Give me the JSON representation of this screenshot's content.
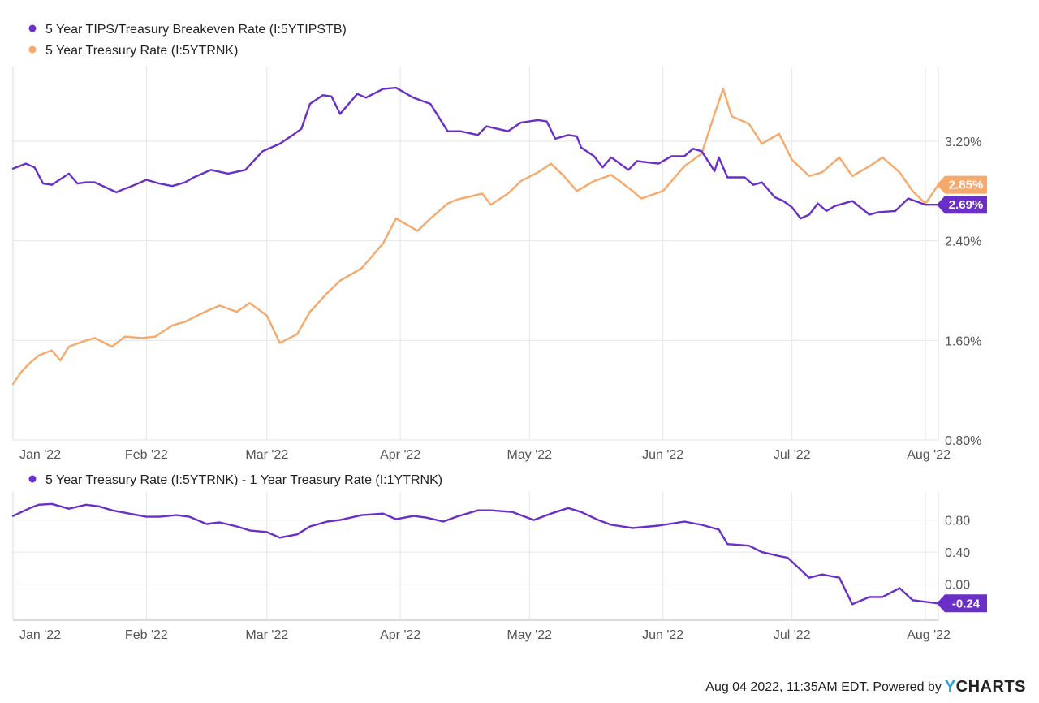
{
  "footer": {
    "text": "Aug 04 2022, 11:35AM EDT. Powered by",
    "brand": "CHARTS",
    "brand_mark": "Y"
  },
  "colors": {
    "purple": "#6a2fc7",
    "orange": "#f7a96b",
    "grid": "#e6e6e6",
    "axis": "#555555"
  },
  "chart_data": [
    {
      "type": "line",
      "x_months": [
        "Jan '22",
        "Feb '22",
        "Mar '22",
        "Apr '22",
        "May '22",
        "Jun '22",
        "Jul '22",
        "Aug '22"
      ],
      "xlim": [
        "2022-01-01",
        "2022-08-04"
      ],
      "y_ticks": [
        "3.20%",
        "2.40%",
        "1.60%",
        "0.80%"
      ],
      "ylim": [
        0.8,
        3.8
      ],
      "ylabel": "",
      "xlabel": "",
      "legend_position": "top-left",
      "series": [
        {
          "name": "5 Year TIPS/Treasury Breakeven Rate (I:5YTIPSTB)",
          "color": "#6a2fc7",
          "last_label": "2.69%",
          "x": [
            "2022-01-01",
            "2022-01-04",
            "2022-01-06",
            "2022-01-08",
            "2022-01-10",
            "2022-01-14",
            "2022-01-16",
            "2022-01-18",
            "2022-01-20",
            "2022-01-25",
            "2022-01-27",
            "2022-01-28",
            "2022-02-01",
            "2022-02-04",
            "2022-02-07",
            "2022-02-10",
            "2022-02-12",
            "2022-02-16",
            "2022-02-20",
            "2022-02-24",
            "2022-02-28",
            "2022-03-04",
            "2022-03-07",
            "2022-03-09",
            "2022-03-11",
            "2022-03-14",
            "2022-03-16",
            "2022-03-18",
            "2022-03-22",
            "2022-03-24",
            "2022-03-28",
            "2022-03-31",
            "2022-04-04",
            "2022-04-08",
            "2022-04-12",
            "2022-04-15",
            "2022-04-19",
            "2022-04-21",
            "2022-04-26",
            "2022-04-29",
            "2022-05-03",
            "2022-05-05",
            "2022-05-07",
            "2022-05-10",
            "2022-05-12",
            "2022-05-13",
            "2022-05-16",
            "2022-05-18",
            "2022-05-20",
            "2022-05-24",
            "2022-05-26",
            "2022-05-31",
            "2022-06-03",
            "2022-06-06",
            "2022-06-08",
            "2022-06-10",
            "2022-06-13",
            "2022-06-14",
            "2022-06-16",
            "2022-06-20",
            "2022-06-22",
            "2022-06-24",
            "2022-06-27",
            "2022-06-29",
            "2022-07-01",
            "2022-07-03",
            "2022-07-05",
            "2022-07-07",
            "2022-07-09",
            "2022-07-11",
            "2022-07-13",
            "2022-07-15",
            "2022-07-19",
            "2022-07-21",
            "2022-07-25",
            "2022-07-28",
            "2022-08-01",
            "2022-08-04"
          ],
          "y": [
            2.98,
            3.02,
            2.99,
            2.86,
            2.85,
            2.94,
            2.86,
            2.87,
            2.87,
            2.79,
            2.82,
            2.83,
            2.89,
            2.86,
            2.84,
            2.87,
            2.91,
            2.97,
            2.94,
            2.97,
            3.12,
            3.18,
            3.25,
            3.3,
            3.5,
            3.57,
            3.56,
            3.42,
            3.58,
            3.55,
            3.62,
            3.63,
            3.55,
            3.5,
            3.28,
            3.28,
            3.25,
            3.32,
            3.28,
            3.35,
            3.37,
            3.36,
            3.22,
            3.25,
            3.24,
            3.15,
            3.08,
            2.99,
            3.07,
            2.97,
            3.04,
            3.02,
            3.08,
            3.08,
            3.14,
            3.12,
            2.96,
            3.07,
            2.91,
            2.91,
            2.85,
            2.87,
            2.75,
            2.72,
            2.67,
            2.58,
            2.61,
            2.7,
            2.64,
            2.68,
            2.7,
            2.72,
            2.61,
            2.63,
            2.64,
            2.74,
            2.69,
            2.69
          ]
        },
        {
          "name": "5 Year Treasury Rate (I:5YTRNK)",
          "color": "#f7a96b",
          "last_label": "2.85%",
          "x": [
            "2022-01-01",
            "2022-01-03",
            "2022-01-05",
            "2022-01-07",
            "2022-01-10",
            "2022-01-12",
            "2022-01-14",
            "2022-01-18",
            "2022-01-20",
            "2022-01-24",
            "2022-01-27",
            "2022-01-31",
            "2022-02-03",
            "2022-02-07",
            "2022-02-10",
            "2022-02-14",
            "2022-02-18",
            "2022-02-22",
            "2022-02-25",
            "2022-03-01",
            "2022-03-04",
            "2022-03-08",
            "2022-03-11",
            "2022-03-15",
            "2022-03-18",
            "2022-03-23",
            "2022-03-25",
            "2022-03-28",
            "2022-03-31",
            "2022-04-05",
            "2022-04-08",
            "2022-04-12",
            "2022-04-14",
            "2022-04-20",
            "2022-04-22",
            "2022-04-26",
            "2022-04-29",
            "2022-05-03",
            "2022-05-06",
            "2022-05-09",
            "2022-05-12",
            "2022-05-16",
            "2022-05-20",
            "2022-05-25",
            "2022-05-27",
            "2022-06-01",
            "2022-06-06",
            "2022-06-10",
            "2022-06-13",
            "2022-06-15",
            "2022-06-17",
            "2022-06-21",
            "2022-06-24",
            "2022-06-28",
            "2022-07-01",
            "2022-07-05",
            "2022-07-08",
            "2022-07-12",
            "2022-07-15",
            "2022-07-19",
            "2022-07-22",
            "2022-07-26",
            "2022-07-29",
            "2022-08-01",
            "2022-08-04"
          ],
          "y": [
            1.25,
            1.35,
            1.42,
            1.48,
            1.52,
            1.44,
            1.55,
            1.6,
            1.62,
            1.55,
            1.63,
            1.62,
            1.63,
            1.72,
            1.75,
            1.82,
            1.88,
            1.83,
            1.9,
            1.8,
            1.58,
            1.65,
            1.83,
            1.98,
            2.08,
            2.18,
            2.26,
            2.38,
            2.58,
            2.48,
            2.58,
            2.7,
            2.73,
            2.78,
            2.69,
            2.78,
            2.88,
            2.95,
            3.02,
            2.92,
            2.8,
            2.88,
            2.93,
            2.8,
            2.74,
            2.8,
            3.0,
            3.1,
            3.42,
            3.62,
            3.4,
            3.34,
            3.18,
            3.26,
            3.05,
            2.92,
            2.95,
            3.07,
            2.92,
            3.0,
            3.07,
            2.95,
            2.8,
            2.7,
            2.85
          ]
        }
      ]
    },
    {
      "type": "line",
      "x_months": [
        "Jan '22",
        "Feb '22",
        "Mar '22",
        "Apr '22",
        "May '22",
        "Jun '22",
        "Jul '22",
        "Aug '22"
      ],
      "xlim": [
        "2022-01-01",
        "2022-08-04"
      ],
      "y_ticks": [
        "0.80",
        "0.40",
        "0.00"
      ],
      "ylim": [
        -0.45,
        1.15
      ],
      "ylabel": "",
      "xlabel": "",
      "legend_position": "top-left",
      "series": [
        {
          "name": "5 Year Treasury Rate (I:5YTRNK) - 1 Year Treasury Rate (I:1YTRNK)",
          "color": "#6a2fc7",
          "last_label": "-0.24",
          "x": [
            "2022-01-01",
            "2022-01-05",
            "2022-01-07",
            "2022-01-10",
            "2022-01-14",
            "2022-01-18",
            "2022-01-21",
            "2022-01-24",
            "2022-01-28",
            "2022-02-01",
            "2022-02-04",
            "2022-02-08",
            "2022-02-11",
            "2022-02-15",
            "2022-02-18",
            "2022-02-22",
            "2022-02-25",
            "2022-03-01",
            "2022-03-04",
            "2022-03-08",
            "2022-03-11",
            "2022-03-15",
            "2022-03-18",
            "2022-03-23",
            "2022-03-28",
            "2022-03-31",
            "2022-04-04",
            "2022-04-07",
            "2022-04-11",
            "2022-04-14",
            "2022-04-19",
            "2022-04-22",
            "2022-04-27",
            "2022-05-02",
            "2022-05-06",
            "2022-05-10",
            "2022-05-13",
            "2022-05-17",
            "2022-05-20",
            "2022-05-25",
            "2022-05-31",
            "2022-06-06",
            "2022-06-10",
            "2022-06-14",
            "2022-06-16",
            "2022-06-21",
            "2022-06-24",
            "2022-06-28",
            "2022-06-30",
            "2022-07-05",
            "2022-07-08",
            "2022-07-12",
            "2022-07-15",
            "2022-07-19",
            "2022-07-22",
            "2022-07-26",
            "2022-07-29",
            "2022-08-04"
          ],
          "y": [
            0.85,
            0.95,
            0.99,
            1.0,
            0.94,
            0.99,
            0.97,
            0.92,
            0.88,
            0.84,
            0.84,
            0.86,
            0.84,
            0.75,
            0.77,
            0.72,
            0.67,
            0.65,
            0.58,
            0.62,
            0.72,
            0.78,
            0.8,
            0.86,
            0.88,
            0.81,
            0.85,
            0.83,
            0.78,
            0.84,
            0.92,
            0.92,
            0.9,
            0.8,
            0.88,
            0.95,
            0.9,
            0.8,
            0.74,
            0.7,
            0.73,
            0.78,
            0.74,
            0.68,
            0.5,
            0.48,
            0.4,
            0.35,
            0.33,
            0.08,
            0.12,
            0.08,
            -0.25,
            -0.16,
            -0.16,
            -0.05,
            -0.2,
            -0.24
          ]
        }
      ]
    }
  ]
}
